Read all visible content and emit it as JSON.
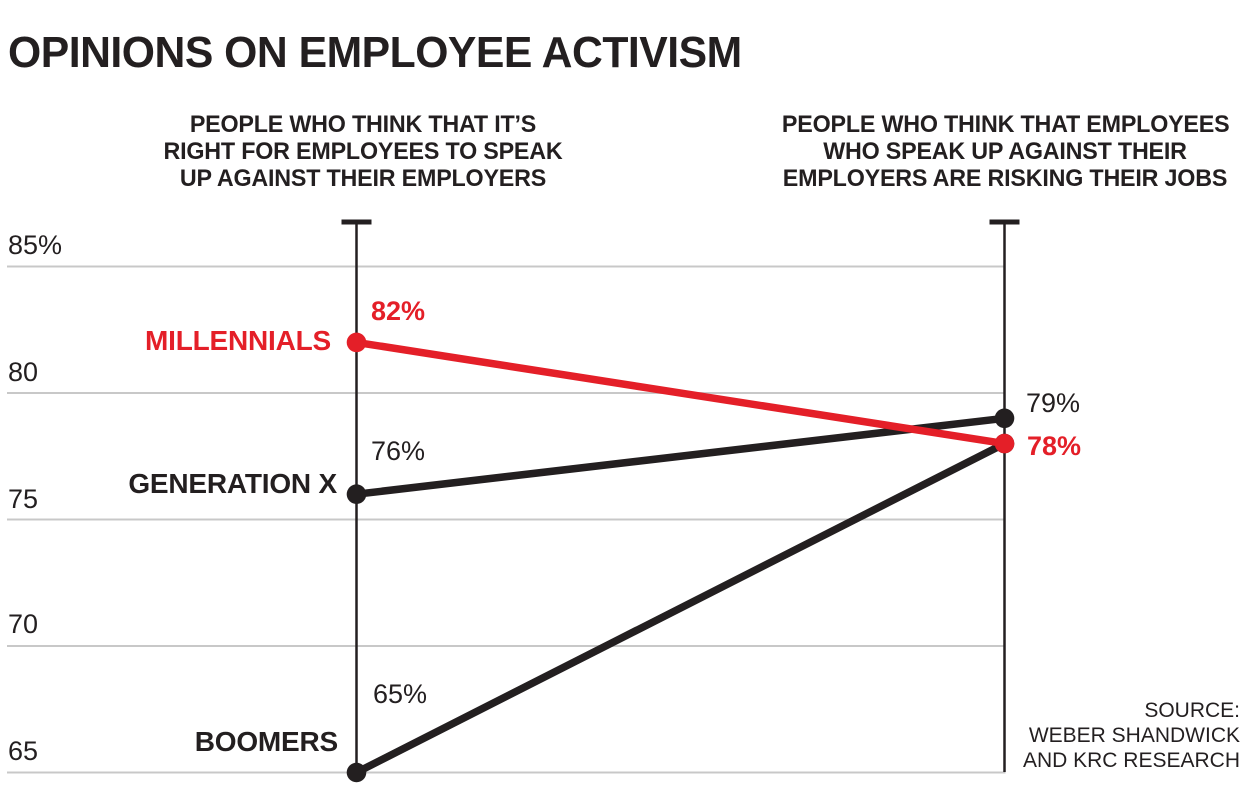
{
  "title": "OPINIONS ON EMPLOYEE ACTIVISM",
  "headers": {
    "left_lines": [
      "PEOPLE WHO THINK THAT IT’S",
      "RIGHT FOR EMPLOYEES TO SPEAK",
      "UP AGAINST THEIR EMPLOYERS"
    ],
    "right_lines": [
      "PEOPLE WHO THINK THAT EMPLOYEES",
      "WHO SPEAK UP AGAINST THEIR",
      "EMPLOYERS ARE RISKING THEIR JOBS"
    ]
  },
  "source": {
    "lines": [
      "SOURCE:",
      "WEBER SHANDWICK",
      "AND KRC RESEARCH"
    ]
  },
  "colors": {
    "red": "#e41f28",
    "black": "#231f20",
    "gridline": "#c8c8c8"
  },
  "chart_data": {
    "type": "line",
    "subtype": "slopegraph",
    "title": "OPINIONS ON EMPLOYEE ACTIVISM",
    "categories": [
      "PEOPLE WHO THINK THAT IT’S RIGHT FOR EMPLOYEES TO SPEAK UP AGAINST THEIR EMPLOYERS",
      "PEOPLE WHO THINK THAT EMPLOYEES WHO SPEAK UP AGAINST THEIR EMPLOYERS ARE RISKING THEIR JOBS"
    ],
    "series": [
      {
        "name": "MILLENNIALS",
        "color": "#e41f28",
        "values": [
          82,
          78
        ],
        "labels": [
          "82%",
          "78%"
        ]
      },
      {
        "name": "GENERATION X",
        "color": "#231f20",
        "values": [
          76,
          79
        ],
        "labels": [
          "76%",
          "79%"
        ]
      },
      {
        "name": "BOOMERS",
        "color": "#231f20",
        "values": [
          65,
          78
        ],
        "labels": [
          "65%",
          null
        ]
      }
    ],
    "yticks": [
      {
        "value": 85,
        "label": "85%"
      },
      {
        "value": 80,
        "label": "80"
      },
      {
        "value": 75,
        "label": "75"
      },
      {
        "value": 70,
        "label": "70"
      },
      {
        "value": 65,
        "label": "65"
      }
    ],
    "ylim": [
      63.5,
      87
    ],
    "grid": true,
    "legend": "none",
    "unit": "%",
    "source": "SOURCE: WEBER SHANDWICK AND KRC RESEARCH"
  }
}
